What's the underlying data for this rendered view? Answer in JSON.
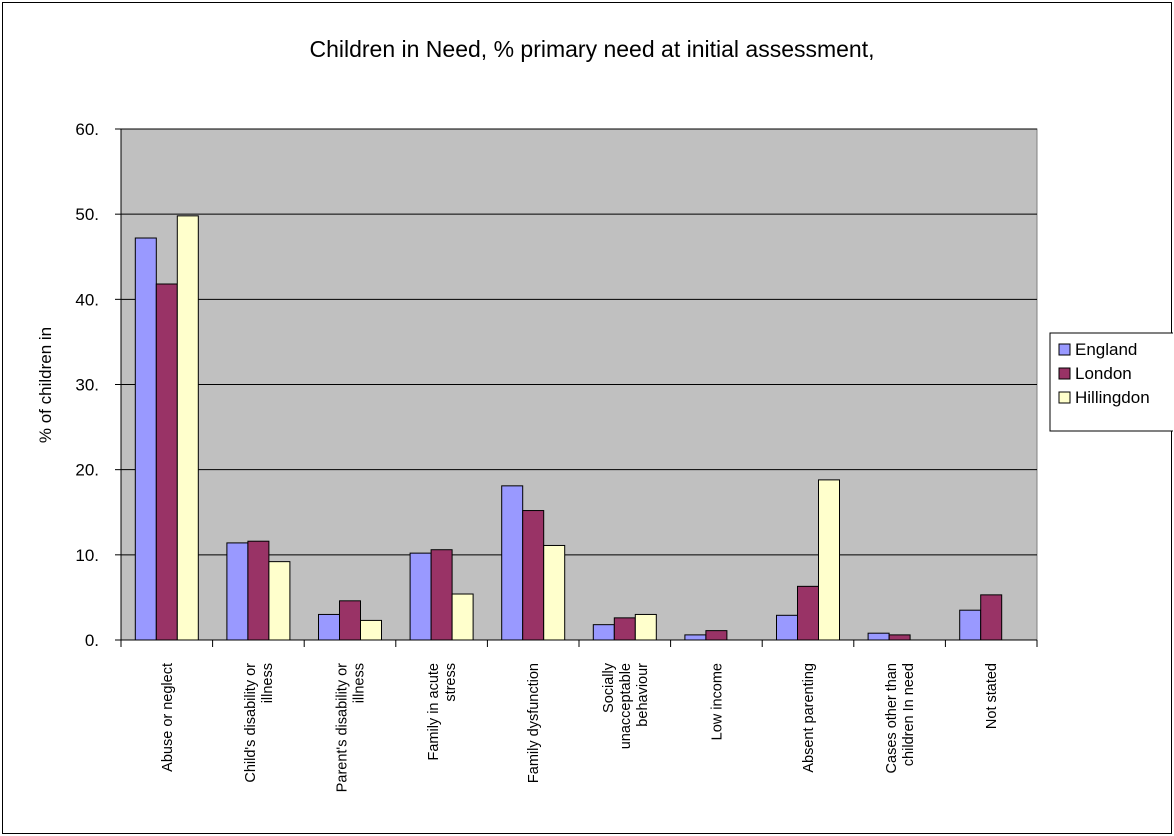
{
  "chart_data": {
    "type": "bar",
    "title": "Children in Need, % primary need at initial assessment,",
    "xlabel": "",
    "ylabel": "% of children in",
    "ylim": [
      0,
      60
    ],
    "yticks": [
      "0.",
      "10.",
      "20.",
      "30.",
      "40.",
      "50.",
      "60."
    ],
    "grid": true,
    "legend_position": "right",
    "categories": [
      [
        "Abuse or neglect"
      ],
      [
        "Child's disability or",
        "illness"
      ],
      [
        "Parent's disability or",
        "illness"
      ],
      [
        "Family in acute",
        "stress"
      ],
      [
        "Family dysfunction"
      ],
      [
        "Socially",
        "unacceptable",
        "behaviour"
      ],
      [
        "Low income"
      ],
      [
        "Absent parenting"
      ],
      [
        "Cases other than",
        "children In need"
      ],
      [
        "Not stated"
      ]
    ],
    "series": [
      {
        "name": "England",
        "color": "#9999ff",
        "values": [
          47.2,
          11.4,
          3.0,
          10.2,
          18.1,
          1.8,
          0.6,
          2.9,
          0.8,
          3.5
        ]
      },
      {
        "name": "London",
        "color": "#993366",
        "values": [
          41.8,
          11.6,
          4.6,
          10.6,
          15.2,
          2.6,
          1.1,
          6.3,
          0.6,
          5.3
        ]
      },
      {
        "name": "Hillingdon",
        "color": "#ffffcc",
        "values": [
          49.8,
          9.2,
          2.3,
          5.4,
          11.1,
          3.0,
          0.0,
          18.8,
          0.0,
          0.0
        ]
      }
    ],
    "colors": {
      "plot_background": "#c0c0c0",
      "gridline": "#000000",
      "border": "#000000"
    }
  }
}
